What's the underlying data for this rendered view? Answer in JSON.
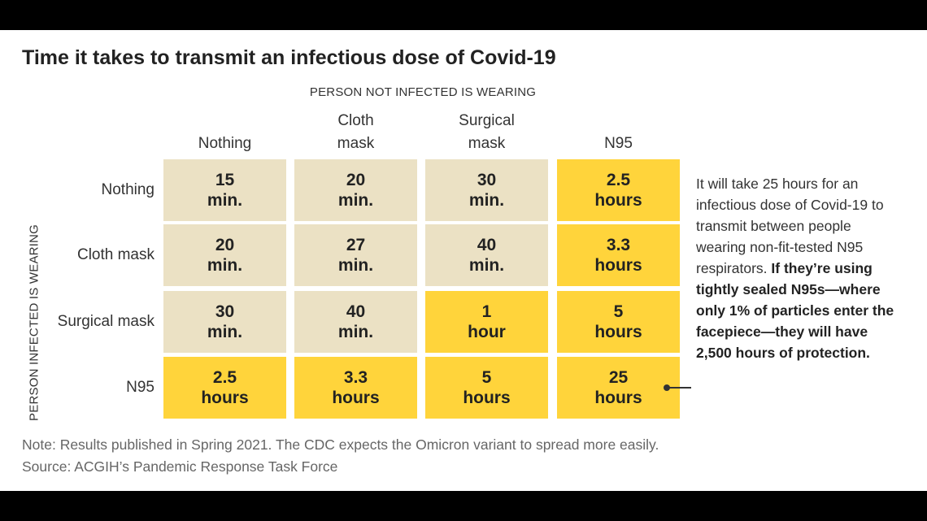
{
  "title": "Time it takes to transmit an infectious dose of Covid-19",
  "annotation": {
    "normal": "It will take 25 hours for an infectious dose of Covid-19 to transmit between people wearing non-fit-tested N95 respirators. ",
    "bold": "If they’re using tightly sealed N95s—where only 1% of particles enter the facepiece—they will have 2,500 hours of protection."
  },
  "note": "Note: Results published in Spring 2021. The CDC expects the Omicron variant to spread more easily.",
  "source": "Source: ACGIH’s Pandemic Response Task Force",
  "colors": {
    "short_time": "#EBE1C4",
    "long_time": "#FFD43B"
  },
  "chart_data": {
    "type": "table",
    "column_header": "PERSON NOT INFECTED IS WEARING",
    "row_header": "PERSON INFECTED IS WEARING",
    "columns": [
      {
        "line1": "",
        "line2": "Nothing"
      },
      {
        "line1": "Cloth",
        "line2": "mask"
      },
      {
        "line1": "Surgical",
        "line2": "mask"
      },
      {
        "line1": "",
        "line2": "N95"
      }
    ],
    "rows": [
      "Nothing",
      "Cloth mask",
      "Surgical mask",
      "N95"
    ],
    "cells": [
      [
        {
          "value": "15",
          "unit": "min.",
          "highlight": false
        },
        {
          "value": "20",
          "unit": "min.",
          "highlight": false
        },
        {
          "value": "30",
          "unit": "min.",
          "highlight": false
        },
        {
          "value": "2.5",
          "unit": "hours",
          "highlight": true
        }
      ],
      [
        {
          "value": "20",
          "unit": "min.",
          "highlight": false
        },
        {
          "value": "27",
          "unit": "min.",
          "highlight": false
        },
        {
          "value": "40",
          "unit": "min.",
          "highlight": false
        },
        {
          "value": "3.3",
          "unit": "hours",
          "highlight": true
        }
      ],
      [
        {
          "value": "30",
          "unit": "min.",
          "highlight": false
        },
        {
          "value": "40",
          "unit": "min.",
          "highlight": false
        },
        {
          "value": "1",
          "unit": "hour",
          "highlight": true
        },
        {
          "value": "5",
          "unit": "hours",
          "highlight": true
        }
      ],
      [
        {
          "value": "2.5",
          "unit": "hours",
          "highlight": true
        },
        {
          "value": "3.3",
          "unit": "hours",
          "highlight": true
        },
        {
          "value": "5",
          "unit": "hours",
          "highlight": true
        },
        {
          "value": "25",
          "unit": "hours",
          "highlight": true
        }
      ]
    ]
  }
}
